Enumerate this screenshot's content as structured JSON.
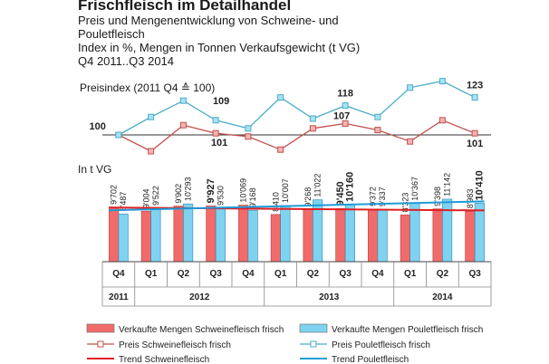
{
  "header": {
    "title": "Frischfleisch im Detailhandel",
    "subtitle_lines": [
      "Preis und Mengenentwicklung von Schweine- und",
      "Pouletfleisch",
      "Index in %, Mengen in Tonnen Verkaufsgewicht (t VG)",
      "Q4 2011..Q3 2014"
    ]
  },
  "chart_data": [
    {
      "type": "line",
      "ylabel": "Preisindex (2011 Q4 ≙ 100)",
      "categories": [
        "Q4 2011",
        "Q1 2012",
        "Q2 2012",
        "Q3 2012",
        "Q4 2012",
        "Q1 2013",
        "Q2 2013",
        "Q3 2013",
        "Q4 2013",
        "Q1 2014",
        "Q2 2014",
        "Q3 2014"
      ],
      "series": [
        {
          "name": "Preis Schweinefleisch frisch",
          "color": "#c0504d",
          "values": [
            100,
            90,
            106,
            101,
            99,
            91,
            104,
            107,
            103,
            96,
            109,
            101
          ]
        },
        {
          "name": "Preis Pouletfleisch frisch",
          "color": "#4bacc6",
          "values": [
            100,
            111,
            121,
            109,
            104,
            123,
            110,
            118,
            111,
            129,
            133,
            123
          ]
        }
      ],
      "reference_line": 100,
      "annotations": [
        {
          "index": 0,
          "label": "100"
        },
        {
          "index": 3,
          "label": "109"
        },
        {
          "index": 3,
          "label": "101"
        },
        {
          "index": 7,
          "label": "118"
        },
        {
          "index": 7,
          "label": "107"
        },
        {
          "index": 11,
          "label": "123"
        },
        {
          "index": 11,
          "label": "101"
        }
      ],
      "ylim": [
        80,
        140
      ]
    },
    {
      "type": "bar",
      "ylabel": "In t VG",
      "categories": [
        "Q4",
        "Q1",
        "Q2",
        "Q3",
        "Q4",
        "Q1",
        "Q2",
        "Q3",
        "Q4",
        "Q1",
        "Q2",
        "Q3"
      ],
      "years": [
        {
          "label": "2011",
          "span": 1
        },
        {
          "label": "2012",
          "span": 4
        },
        {
          "label": "2013",
          "span": 4
        },
        {
          "label": "2014",
          "span": 3
        }
      ],
      "series": [
        {
          "name": "Verkaufte Mengen Schweinefleisch frisch",
          "color": "#f26b6b",
          "values": [
            9702,
            9004,
            9902,
            9927,
            10069,
            8410,
            9268,
            9450,
            9372,
            8323,
            9398,
            8983
          ],
          "labels": [
            "9'702",
            "9'004",
            "9'902",
            "9'927",
            "10'069",
            "8'410",
            "9'268",
            "9'450",
            "9'372",
            "8'323",
            "9'398",
            "8'983"
          ]
        },
        {
          "name": "Verkaufte Mengen Pouletfleisch frisch",
          "color": "#7fd3f0",
          "values": [
            8487,
            9522,
            10293,
            9530,
            9168,
            10007,
            11022,
            10160,
            9337,
            10367,
            11142,
            10410
          ],
          "labels": [
            "8'487",
            "9'522",
            "10'293",
            "9'530",
            "9'168",
            "10'007",
            "11'022",
            "10'160",
            "9'337",
            "10'367",
            "11'142",
            "10'410"
          ]
        }
      ],
      "trends": [
        {
          "name": "Trend Schweinefleisch",
          "color": "#e02020",
          "start": 9650,
          "end": 9130
        },
        {
          "name": "Trend Pouletfleisch",
          "color": "#1f9bd7",
          "start": 9150,
          "end": 10750
        }
      ],
      "ylim": [
        0,
        13000
      ]
    }
  ],
  "legend": [
    {
      "label": "Verkaufte Mengen Schweinefleisch frisch",
      "kind": "bar",
      "color": "#f26b6b"
    },
    {
      "label": "Verkaufte Mengen Pouletfleisch frisch",
      "kind": "bar",
      "color": "#7fd3f0"
    },
    {
      "label": "Preis Schweinefleisch frisch",
      "kind": "marker-line",
      "color": "#c0504d"
    },
    {
      "label": "Preis Pouletfleisch frisch",
      "kind": "marker-line",
      "color": "#4bacc6"
    },
    {
      "label": "Trend Schweinefleisch",
      "kind": "line",
      "color": "#e02020"
    },
    {
      "label": "Trend Pouletfleisch",
      "kind": "line",
      "color": "#1f9bd7"
    }
  ]
}
